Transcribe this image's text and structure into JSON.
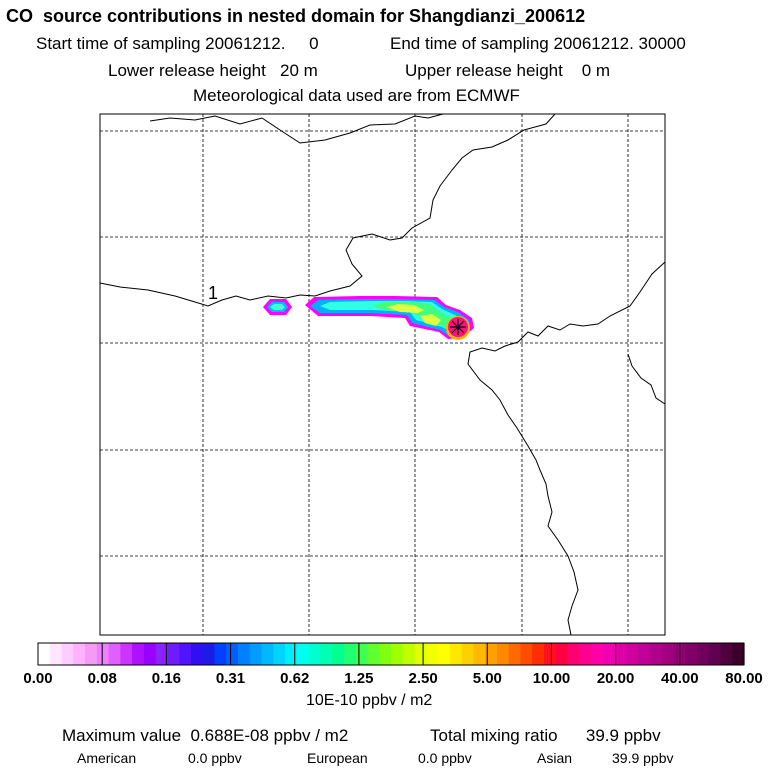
{
  "header": {
    "title": "CO  source contributions in nested domain for Shangdianzi_200612",
    "start_time": "Start time of sampling 20061212.     0",
    "end_time": "End time of sampling 20061212. 30000",
    "lower_release": "Lower release height   20 m",
    "upper_release": "Upper release height    0 m",
    "met_data": "Meteorological data used are from ECMWF"
  },
  "map": {
    "contour_label": "1",
    "colors": {
      "low": "#00c8ff",
      "mid": "#40ffd0",
      "green": "#30ff30",
      "yellow": "#e0ff40",
      "peak": "#ff1080",
      "outline": "#ff00ff"
    }
  },
  "colorbar": {
    "units": "10E-10 ppbv / m2",
    "labels": [
      "0.00",
      "0.08",
      "0.16",
      "0.31",
      "0.62",
      "1.25",
      "2.50",
      "5.00",
      "10.00",
      "20.00",
      "40.00",
      "80.00"
    ],
    "colors": [
      "#ffffff",
      "#ffe6ff",
      "#ffccff",
      "#ffb3ff",
      "#f59af5",
      "#ec80ff",
      "#e060ff",
      "#cc33ff",
      "#b010ff",
      "#9900ff",
      "#8822ff",
      "#6e1bff",
      "#5014ff",
      "#3010f0",
      "#1c1ce8",
      "#0040ff",
      "#0060ff",
      "#0080ff",
      "#009cff",
      "#00b8ff",
      "#00d4ff",
      "#00eeff",
      "#00fff0",
      "#00ffd0",
      "#00ffb0",
      "#00ff90",
      "#20ff70",
      "#40ff50",
      "#60ff30",
      "#80ff10",
      "#a0ff00",
      "#c0ff00",
      "#e0ff00",
      "#f4ff00",
      "#ffff00",
      "#ffe800",
      "#ffd000",
      "#ffb800",
      "#ffa000",
      "#ff8800",
      "#ff6a00",
      "#ff4c00",
      "#ff2e00",
      "#ff1020",
      "#ff0040",
      "#ff0070",
      "#ff0090",
      "#ff00a8",
      "#f000b0",
      "#e000a8",
      "#d000a0",
      "#c00098",
      "#b0008c",
      "#a00080",
      "#900074",
      "#800068",
      "#70005c",
      "#600050",
      "#50003c",
      "#3a002a"
    ]
  },
  "summary": {
    "max_value": "Maximum value  0.688E-08 ppbv / m2",
    "total": "Total mixing ratio      39.9 ppbv",
    "american_label": "American",
    "american_value": "0.0 ppbv",
    "european_label": "European",
    "european_value": "0.0 ppbv",
    "asian_label": "Asian",
    "asian_value": "39.9 ppbv"
  }
}
